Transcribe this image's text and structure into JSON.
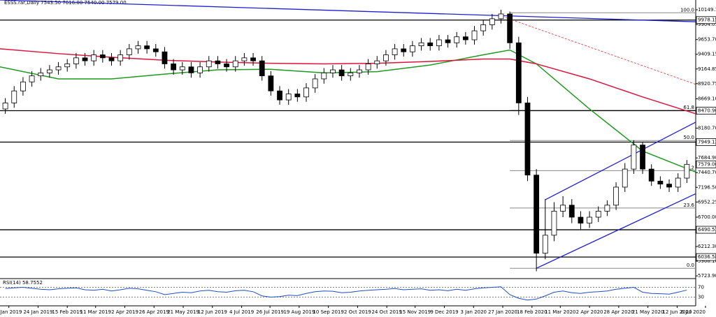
{
  "chart_data": {
    "type": "candlestick",
    "title": "ESSS.rar,Daily 7543.50 7616.00 7540.00 7579.00",
    "xlim": [
      -0.6,
      78
    ],
    "xticks": [
      {
        "value": 0.4,
        "label": "2 Jan 2019"
      },
      {
        "value": 3.7,
        "label": "24 Jan 2019"
      },
      {
        "value": 7.0,
        "label": "15 Feb 2019"
      },
      {
        "value": 10.2,
        "label": "11 Mar 2019"
      },
      {
        "value": 13.5,
        "label": "2 Apr 2019"
      },
      {
        "value": 16.8,
        "label": "26 Apr 2019"
      },
      {
        "value": 20.1,
        "label": "21 May 2019"
      },
      {
        "value": 23.4,
        "label": "12 Jun 2019"
      },
      {
        "value": 26.7,
        "label": "4 Jul 2019"
      },
      {
        "value": 29.9,
        "label": "26 Jul 2019"
      },
      {
        "value": 33.2,
        "label": "19 Aug 2019"
      },
      {
        "value": 36.5,
        "label": "10 Sep 2019"
      },
      {
        "value": 39.8,
        "label": "2 Oct 2019"
      },
      {
        "value": 43.1,
        "label": "24 Oct 2019"
      },
      {
        "value": 46.3,
        "label": "15 Nov 2019"
      },
      {
        "value": 49.6,
        "label": "9 Dec 2019"
      },
      {
        "value": 52.9,
        "label": "3 Jan 2020"
      },
      {
        "value": 56.2,
        "label": "27 Jan 2020"
      },
      {
        "value": 59.5,
        "label": "18 Feb 2020"
      },
      {
        "value": 62.7,
        "label": "11 Mar 2020"
      },
      {
        "value": 66.0,
        "label": "2 Apr 2020"
      },
      {
        "value": 69.3,
        "label": "28 Apr 2020"
      },
      {
        "value": 72.6,
        "label": "21 May 2020"
      },
      {
        "value": 75.9,
        "label": "12 Jun 2020"
      },
      {
        "value": 79.1,
        "label": "6 Jul 2020"
      }
    ],
    "ylim": [
      5690,
      10312
    ],
    "yticks": [
      {
        "value": 10149.1,
        "label": "10149.10"
      },
      9904.05,
      {
        "value": 9653.7,
        "label": "9653.70"
      },
      9409.15,
      9164.85,
      8920.75,
      {
        "value": 8669.1,
        "label": "8669.10"
      },
      {
        "value": 8180.7,
        "label": "8180.70"
      },
      {
        "value": 7684.9,
        "label": "7684.90"
      },
      {
        "value": 7440.7,
        "label": "7440.70"
      },
      {
        "value": 7196.5,
        "label": "7196.50"
      },
      6952.25,
      {
        "value": 6700,
        "label": "6700.00"
      },
      {
        "value": 6212.3,
        "label": "6212.30"
      },
      {
        "value": 5968.1,
        "label": "5968.10"
      },
      {
        "value": 5723.9,
        "label": "5723.90"
      }
    ],
    "levels": [
      9978.15,
      8470.96,
      7949.12,
      6490.53,
      6036.58
    ],
    "last_price": {
      "value": 7579,
      "label": "7579.00"
    },
    "candles": {
      "up_color": "#ffffff",
      "down_color": "#000000",
      "open": [
        8500,
        8600,
        8800,
        8950,
        9050,
        9100,
        9150,
        9200,
        9250,
        9350,
        9300,
        9400,
        9350,
        9300,
        9400,
        9500,
        9550,
        9500,
        9450,
        9250,
        9150,
        9200,
        9100,
        9200,
        9300,
        9250,
        9200,
        9300,
        9350,
        9300,
        9050,
        8800,
        8650,
        8750,
        8700,
        8850,
        9000,
        9100,
        9150,
        9050,
        9100,
        9150,
        9250,
        9300,
        9400,
        9500,
        9450,
        9550,
        9600,
        9550,
        9650,
        9600,
        9700,
        9650,
        9800,
        9900,
        10000,
        10080,
        9600,
        8600,
        7400,
        6100,
        6400,
        6800,
        6900,
        6700,
        6600,
        6700,
        6800,
        6900,
        7200,
        7500,
        7900,
        7500,
        7300,
        7250,
        7200,
        7350
      ],
      "high": [
        8680,
        8880,
        9030,
        9130,
        9180,
        9230,
        9280,
        9330,
        9430,
        9430,
        9480,
        9480,
        9430,
        9480,
        9580,
        9630,
        9630,
        9580,
        9530,
        9330,
        9280,
        9280,
        9280,
        9380,
        9380,
        9330,
        9380,
        9430,
        9430,
        9380,
        9130,
        8880,
        8830,
        8830,
        8930,
        9080,
        9180,
        9230,
        9230,
        9180,
        9230,
        9330,
        9380,
        9480,
        9580,
        9580,
        9630,
        9680,
        9680,
        9730,
        9730,
        9780,
        9780,
        9880,
        9980,
        10080,
        10150,
        10120,
        9700,
        8700,
        7500,
        7000,
        6950,
        7050,
        7000,
        6800,
        6800,
        6880,
        6980,
        7280,
        7600,
        7980,
        7950,
        7580,
        7380,
        7330,
        7430,
        7650
      ],
      "low": [
        8420,
        8520,
        8720,
        8870,
        8970,
        9020,
        9070,
        9120,
        9170,
        9220,
        9220,
        9270,
        9220,
        9220,
        9320,
        9420,
        9420,
        9370,
        9170,
        9070,
        9070,
        9020,
        9020,
        9120,
        9170,
        9120,
        9120,
        9220,
        9220,
        8970,
        8720,
        8570,
        8570,
        8620,
        8620,
        8770,
        8920,
        9020,
        8970,
        8970,
        9020,
        9070,
        9170,
        9220,
        9320,
        9370,
        9370,
        9470,
        9470,
        9470,
        9520,
        9520,
        9570,
        9570,
        9720,
        9820,
        9920,
        9500,
        8400,
        7300,
        5800,
        6000,
        6300,
        6700,
        6600,
        6500,
        6520,
        6620,
        6720,
        6820,
        7120,
        7420,
        7420,
        7220,
        7170,
        7120,
        7120,
        7270
      ],
      "close": [
        8600,
        8800,
        8950,
        9050,
        9100,
        9150,
        9200,
        9250,
        9350,
        9300,
        9400,
        9350,
        9300,
        9400,
        9500,
        9550,
        9500,
        9450,
        9250,
        9150,
        9200,
        9100,
        9200,
        9300,
        9250,
        9200,
        9300,
        9350,
        9300,
        9050,
        8800,
        8650,
        8750,
        8700,
        8850,
        9000,
        9100,
        9150,
        9050,
        9100,
        9150,
        9250,
        9300,
        9400,
        9500,
        9450,
        9550,
        9600,
        9550,
        9650,
        9600,
        9700,
        9650,
        9800,
        9900,
        10000,
        10080,
        9600,
        8600,
        7400,
        6100,
        6400,
        6800,
        6900,
        6700,
        6600,
        6700,
        6800,
        6900,
        7200,
        7500,
        7900,
        7500,
        7300,
        7250,
        7200,
        7350,
        7579
      ]
    },
    "series": [
      {
        "color": "#1f9a1f",
        "x": [
          -0.6,
          6,
          12,
          18,
          24,
          30,
          36,
          42,
          48,
          54,
          57,
          60,
          66,
          72,
          78
        ],
        "values": [
          9200,
          9000,
          9000,
          9080,
          9150,
          9160,
          9100,
          9120,
          9230,
          9400,
          9480,
          9250,
          8500,
          7800,
          7450
        ]
      },
      {
        "color": "#dc143c",
        "x": [
          -0.6,
          6,
          12,
          18,
          24,
          30,
          36,
          42,
          48,
          54,
          57,
          60,
          66,
          72,
          78
        ],
        "values": [
          9500,
          9420,
          9360,
          9310,
          9280,
          9260,
          9250,
          9260,
          9290,
          9330,
          9330,
          9250,
          9000,
          8700,
          8420
        ]
      }
    ],
    "trendlines": [
      {
        "color": "#1f1fcf",
        "dashed": false,
        "x": [
          -0.6,
          78
        ],
        "values": [
          10312,
          9950
        ]
      },
      {
        "color": "#1f1fcf",
        "dashed": false,
        "x": [
          60,
          78
        ],
        "values": [
          5850,
          7090
        ]
      },
      {
        "color": "#1f1fcf",
        "dashed": false,
        "x": [
          61,
          78
        ],
        "values": [
          6990,
          8280
        ]
      },
      {
        "color": "#e0302a",
        "dashed": true,
        "x": [
          56.5,
          78
        ],
        "values": [
          10020,
          8910
        ]
      }
    ],
    "fib": {
      "color": "#888888",
      "x": [
        57,
        78
      ],
      "high": 10100,
      "low": 5850,
      "levels": [
        {
          "value": 100,
          "label": "100.0"
        },
        {
          "value": 61.8,
          "label": "61.8"
        },
        {
          "value": 50,
          "label": "50.0"
        },
        {
          "value": 38.2,
          "label": "38.2"
        },
        {
          "value": 23.6,
          "label": "23.6"
        },
        {
          "value": 0,
          "label": "0.0"
        }
      ]
    },
    "rsi": {
      "label": "RSI(14) 58.7552",
      "color": "#1f4fbf",
      "ylim": [
        0,
        100
      ],
      "yticks": [
        70,
        30
      ],
      "values": [
        65,
        68,
        70,
        66,
        62,
        60,
        64,
        66,
        68,
        60,
        58,
        62,
        55,
        60,
        66,
        64,
        58,
        52,
        40,
        45,
        50,
        48,
        55,
        58,
        52,
        50,
        56,
        58,
        52,
        35,
        30,
        32,
        38,
        36,
        45,
        52,
        55,
        54,
        48,
        50,
        55,
        58,
        60,
        62,
        65,
        60,
        62,
        64,
        58,
        60,
        56,
        62,
        58,
        64,
        68,
        70,
        72,
        40,
        25,
        18,
        22,
        35,
        50,
        55,
        48,
        45,
        50,
        52,
        55,
        62,
        66,
        70,
        50,
        45,
        44,
        42,
        50,
        58.7552
      ]
    }
  }
}
